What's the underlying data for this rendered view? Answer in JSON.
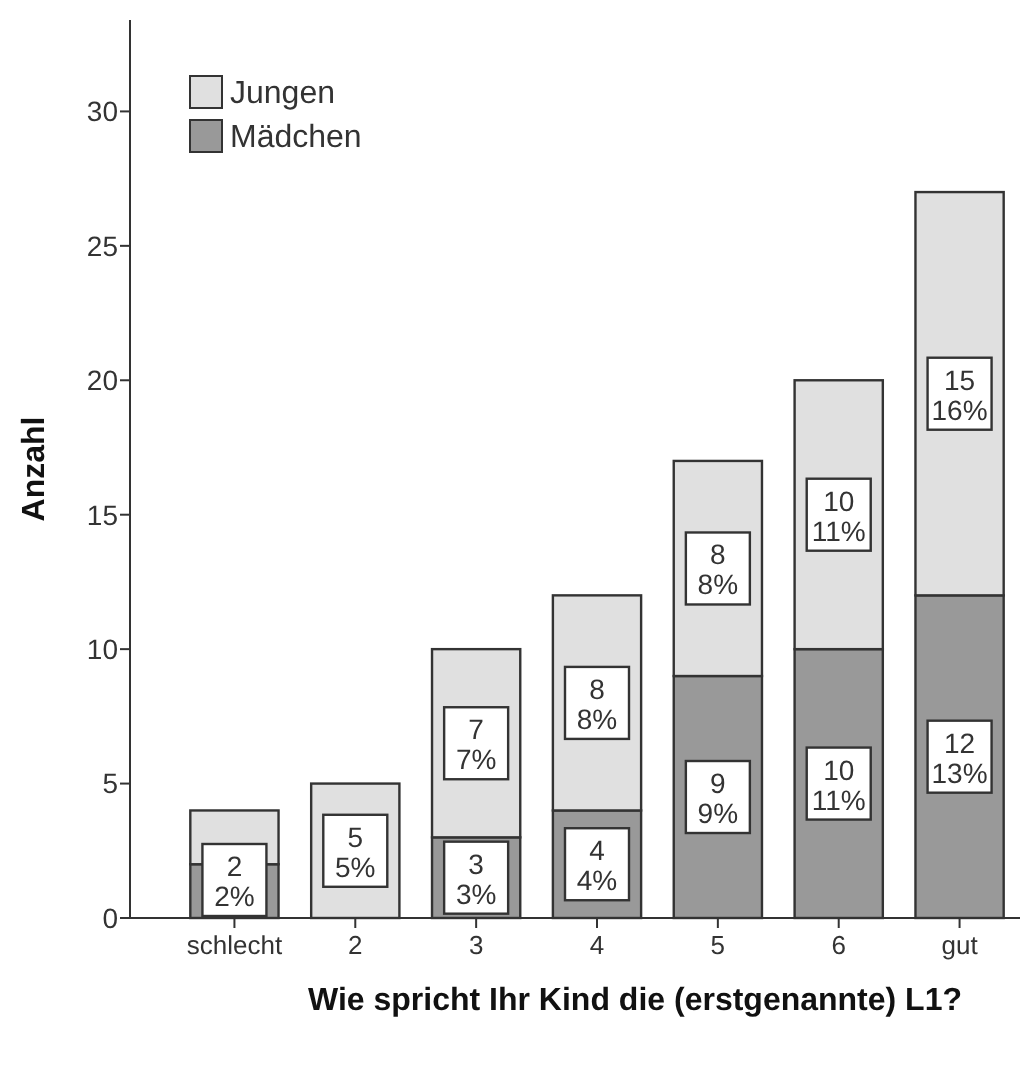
{
  "chart_data": {
    "type": "bar",
    "stacked": true,
    "xlabel": "Wie spricht Ihr Kind die (erstgenannte) L1?",
    "ylabel": "Anzahl",
    "categories": [
      "schlecht",
      "2",
      "3",
      "4",
      "5",
      "6",
      "gut"
    ],
    "series": [
      {
        "name": "Mädchen",
        "color": "#999999",
        "values": [
          2,
          0,
          3,
          4,
          9,
          10,
          12
        ],
        "value_labels": [
          "2\n2%",
          null,
          "3\n3%",
          "4\n4%",
          "9\n9%",
          "10\n11%",
          "12\n13%"
        ]
      },
      {
        "name": "Jungen",
        "color": "#e0e0e0",
        "values": [
          2,
          5,
          7,
          8,
          8,
          10,
          15
        ],
        "value_labels": [
          null,
          "5\n5%",
          "7\n7%",
          "8\n8%",
          "8\n8%",
          "10\n11%",
          "15\n16%"
        ]
      }
    ],
    "ylim": [
      0,
      33.4
    ],
    "yticks": [
      0,
      5,
      10,
      15,
      20,
      25,
      30
    ],
    "grid": false,
    "legend": "top left"
  }
}
